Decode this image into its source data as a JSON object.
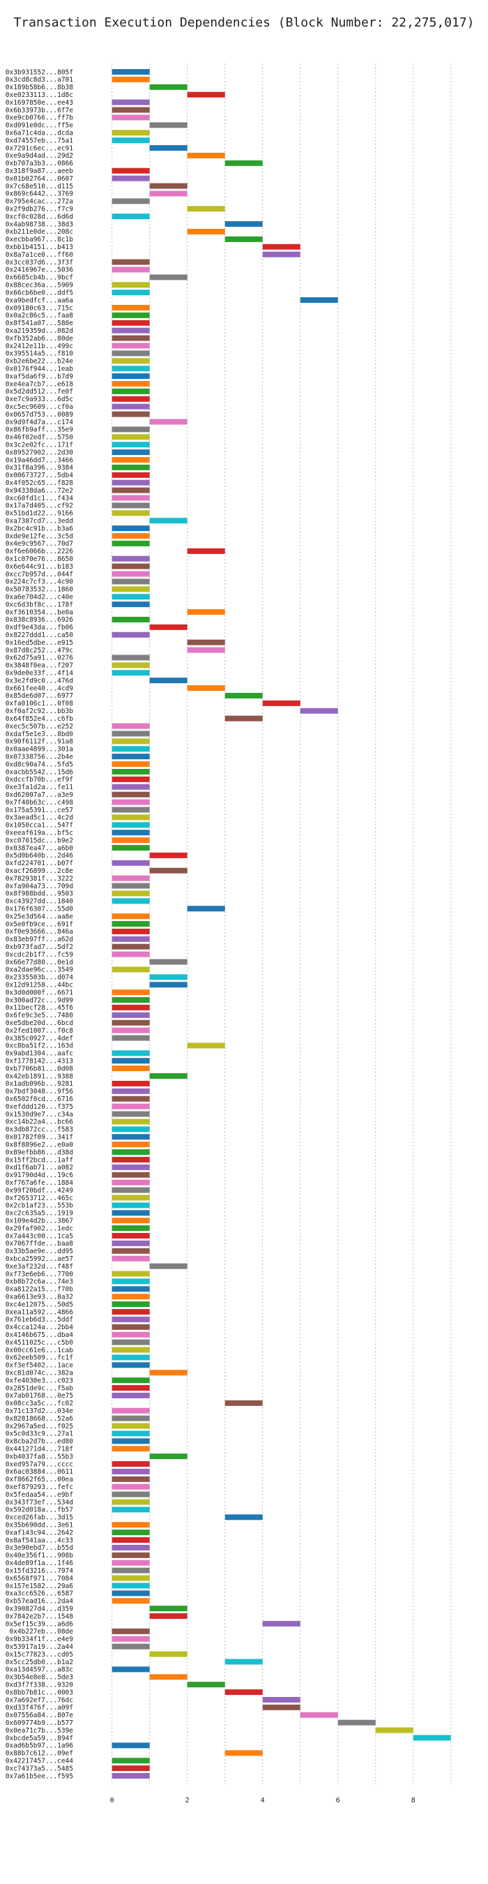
{
  "chart_data": {
    "type": "bar",
    "orientation": "horizontal",
    "title": "Transaction Execution Dependencies (Block Number: 22,275,017)",
    "xlabel": "",
    "ylabel": "",
    "xlim": [
      -0.9,
      9.8
    ],
    "xticks": [
      0,
      2,
      4,
      6,
      8
    ],
    "grid": "vertical-dashed",
    "legend": "none",
    "palette": [
      "#1f77b4",
      "#ff7f0e",
      "#2ca02c",
      "#d62728",
      "#9467bd",
      "#8c564b",
      "#e377c2",
      "#7f7f7f",
      "#bcbd22",
      "#17becf"
    ],
    "transactions": [
      {
        "label": "0x3b931552...805f",
        "start": 0
      },
      {
        "label": "0x3cd8c8d3...a701",
        "start": 0
      },
      {
        "label": "0x189b58b6...8b38",
        "start": 1
      },
      {
        "label": "0xe0233113...1d8c",
        "start": 2
      },
      {
        "label": "0x1697850e...ee43",
        "start": 0
      },
      {
        "label": "0x6b33973b...6f7e",
        "start": 0
      },
      {
        "label": "0xe9cb0766...ff7b",
        "start": 0
      },
      {
        "label": "0xd091e0dc...ff5e",
        "start": 1
      },
      {
        "label": "0x6a71c4da...dcda",
        "start": 0
      },
      {
        "label": "0xd74557eb...75a1",
        "start": 0
      },
      {
        "label": "0x7291c6ec...ec91",
        "start": 1
      },
      {
        "label": "0xe9a9d4ad...29d2",
        "start": 2
      },
      {
        "label": "0xb707a3b3...0866",
        "start": 3
      },
      {
        "label": "0x318f9a87...aeeb",
        "start": 0
      },
      {
        "label": "0x01b02764...0607",
        "start": 0
      },
      {
        "label": "0x7c68e510...d115",
        "start": 1
      },
      {
        "label": "0x869c6442...3769",
        "start": 1
      },
      {
        "label": "0x795e4cac...272a",
        "start": 0
      },
      {
        "label": "0x2f9db276...f7c9",
        "start": 2
      },
      {
        "label": "0xcf0c028d...6d6d",
        "start": 0
      },
      {
        "label": "0x4ab98738...38d3",
        "start": 3
      },
      {
        "label": "0xb211e0de...208c",
        "start": 2
      },
      {
        "label": "0xecbba967...8c1b",
        "start": 3
      },
      {
        "label": "0xbb1b4151...b413",
        "start": 4
      },
      {
        "label": "0x8a7a1ce0...ff60",
        "start": 4
      },
      {
        "label": "0x3cc037d6...3f3f",
        "start": 0
      },
      {
        "label": "0x2416967e...5036",
        "start": 0
      },
      {
        "label": "0x6685cb4b...9bcf",
        "start": 1
      },
      {
        "label": "0x88cec36a...5909",
        "start": 0
      },
      {
        "label": "0x66cb6be0...ddf5",
        "start": 0
      },
      {
        "label": "0xa9bedfcf...aa6a",
        "start": 5
      },
      {
        "label": "0x09180c63...715c",
        "start": 0
      },
      {
        "label": "0x0a2c86c5...faa8",
        "start": 0
      },
      {
        "label": "0x8f541a07...580e",
        "start": 0
      },
      {
        "label": "0xa219359d...082d",
        "start": 0
      },
      {
        "label": "0xfb352ab6...80de",
        "start": 0
      },
      {
        "label": "0x2412e11b...499c",
        "start": 0
      },
      {
        "label": "0x395514a5...f810",
        "start": 0
      },
      {
        "label": "0xb2e6be22...b24e",
        "start": 0
      },
      {
        "label": "0x0176f944...1eab",
        "start": 0
      },
      {
        "label": "0xaf5da6f9...b7d9",
        "start": 0
      },
      {
        "label": "0xe4ea7cb7...e618",
        "start": 0
      },
      {
        "label": "0x5d2dd512...fe0f",
        "start": 0
      },
      {
        "label": "0xe7c9a933...6d5c",
        "start": 0
      },
      {
        "label": "0xc5ec9609...cf0a",
        "start": 0
      },
      {
        "label": "0x0657d753...0089",
        "start": 0
      },
      {
        "label": "0x9d9f4d7a...c174",
        "start": 1
      },
      {
        "label": "0x86fb9aff...35e9",
        "start": 0
      },
      {
        "label": "0x46f02edf...5750",
        "start": 0
      },
      {
        "label": "0x3c2e02fc...171f",
        "start": 0
      },
      {
        "label": "0x89527902...2d30",
        "start": 0
      },
      {
        "label": "0x19a46dd7...3466",
        "start": 0
      },
      {
        "label": "0x31f8a396...9384",
        "start": 0
      },
      {
        "label": "0x00673727...5db4",
        "start": 0
      },
      {
        "label": "0x4f052c65...f828",
        "start": 0
      },
      {
        "label": "0x94338da6...72e2",
        "start": 0
      },
      {
        "label": "0xc60fd1c1...f434",
        "start": 0
      },
      {
        "label": "0x17a7d405...cf92",
        "start": 0
      },
      {
        "label": "0x51bd1d22...9166",
        "start": 0
      },
      {
        "label": "0xa7387cd7...3edd",
        "start": 1
      },
      {
        "label": "0x2bc4c91b...b3a6",
        "start": 0
      },
      {
        "label": "0xde9e12fe...3c5d",
        "start": 0
      },
      {
        "label": "0x4e9c9567...70d7",
        "start": 0
      },
      {
        "label": "0xf6e6066b...2226",
        "start": 2
      },
      {
        "label": "0x1c070e76...8650",
        "start": 0
      },
      {
        "label": "0x6e644c91...b183",
        "start": 0
      },
      {
        "label": "0xcc7b957d...044f",
        "start": 0
      },
      {
        "label": "0x224c7cf3...4c90",
        "start": 0
      },
      {
        "label": "0x50783532...1860",
        "start": 0
      },
      {
        "label": "0xa6e704d2...c40e",
        "start": 0
      },
      {
        "label": "0xc6d3bf8c...178f",
        "start": 0
      },
      {
        "label": "0xf3610354...be0a",
        "start": 2
      },
      {
        "label": "0x838c8936...6926",
        "start": 0
      },
      {
        "label": "0xdf9e43da...fb06",
        "start": 1
      },
      {
        "label": "0x8227ddd1...ca50",
        "start": 0
      },
      {
        "label": "0x16ed5dbe...e915",
        "start": 2
      },
      {
        "label": "0x87d8c252...479c",
        "start": 2
      },
      {
        "label": "0x62d75a91...0276",
        "start": 0
      },
      {
        "label": "0x3848f0ea...f207",
        "start": 0
      },
      {
        "label": "0x9de0e33f...4f14",
        "start": 0
      },
      {
        "label": "0x3e2fd9c0...476d",
        "start": 1
      },
      {
        "label": "0x661fee40...4cd9",
        "start": 2
      },
      {
        "label": "0x85de6d07...6977",
        "start": 3
      },
      {
        "label": "0xfa0106c1...0f08",
        "start": 4
      },
      {
        "label": "0xf0af2c92...bb3b",
        "start": 5
      },
      {
        "label": "0x64f852e4...c6fb",
        "start": 3
      },
      {
        "label": "0xec5c507b...e252",
        "start": 0
      },
      {
        "label": "0xdaf5e1e3...8bd0",
        "start": 0
      },
      {
        "label": "0x90f6112f...91a8",
        "start": 0
      },
      {
        "label": "0x0aae4899...301a",
        "start": 0
      },
      {
        "label": "0x07338756...2b4e",
        "start": 0
      },
      {
        "label": "0xd8c90a74...5fd5",
        "start": 0
      },
      {
        "label": "0xacbb5542...15d6",
        "start": 0
      },
      {
        "label": "0xdccfb70b...ef9f",
        "start": 0
      },
      {
        "label": "0xe3fa1d2a...fe11",
        "start": 0
      },
      {
        "label": "0xd62007a7...a3e9",
        "start": 0
      },
      {
        "label": "0x7f40b63c...c498",
        "start": 0
      },
      {
        "label": "0x175a5391...ce57",
        "start": 0
      },
      {
        "label": "0x3aead5c1...4c2d",
        "start": 0
      },
      {
        "label": "0x1050cca1...547f",
        "start": 0
      },
      {
        "label": "0xeeaf619a...bf5c",
        "start": 0
      },
      {
        "label": "0xc07015dc...b9e2",
        "start": 0
      },
      {
        "label": "0x0387ea47...a6b0",
        "start": 0
      },
      {
        "label": "0x5d0b640b...2d46",
        "start": 1
      },
      {
        "label": "0xfd224701...b07f",
        "start": 0
      },
      {
        "label": "0xacf26899...2c8e",
        "start": 1
      },
      {
        "label": "0x7829381f...3222",
        "start": 0
      },
      {
        "label": "0xfa904a73...709d",
        "start": 0
      },
      {
        "label": "0x8f988bdd...9503",
        "start": 0
      },
      {
        "label": "0xc43927dd...1840",
        "start": 0
      },
      {
        "label": "0x176f6307...55d0",
        "start": 2
      },
      {
        "label": "0x25e3d564...aa8e",
        "start": 0
      },
      {
        "label": "0x5e0fb9ce...691f",
        "start": 0
      },
      {
        "label": "0xf0e93666...846a",
        "start": 0
      },
      {
        "label": "0x83eb97ff...a62d",
        "start": 0
      },
      {
        "label": "0xb973fad7...5df2",
        "start": 0
      },
      {
        "label": "0xcdc2b1f7...fc59",
        "start": 0
      },
      {
        "label": "0x66e77d80...0e1d",
        "start": 1
      },
      {
        "label": "0xa2dae96c...3549",
        "start": 0
      },
      {
        "label": "0x2335503b...d074",
        "start": 1
      },
      {
        "label": "0x12d91258...44bc",
        "start": 1
      },
      {
        "label": "0x3d0d000f...6671",
        "start": 0
      },
      {
        "label": "0x300ad72c...9d99",
        "start": 0
      },
      {
        "label": "0x11becf28...45f6",
        "start": 0
      },
      {
        "label": "0x6fe9c3e5...7480",
        "start": 0
      },
      {
        "label": "0xe5dbe20d...6bcd",
        "start": 0
      },
      {
        "label": "0x2fed1007...f0c8",
        "start": 0
      },
      {
        "label": "0x385c0927...4def",
        "start": 0
      },
      {
        "label": "0xc8ba51f2...163d",
        "start": 2
      },
      {
        "label": "0x9abd1304...aafc",
        "start": 0
      },
      {
        "label": "0xf1778142...4313",
        "start": 0
      },
      {
        "label": "0xb7706b81...0d08",
        "start": 0
      },
      {
        "label": "0x42eb1891...9388",
        "start": 1
      },
      {
        "label": "0x1adb096b...9281",
        "start": 0
      },
      {
        "label": "0x7bdf3048...9f56",
        "start": 0
      },
      {
        "label": "0x6502f0cd...6716",
        "start": 0
      },
      {
        "label": "0xefddd120...f375",
        "start": 0
      },
      {
        "label": "0x1530d9e7...c34a",
        "start": 0
      },
      {
        "label": "0xc14b22a4...bc66",
        "start": 0
      },
      {
        "label": "0x3db872cc...f583",
        "start": 0
      },
      {
        "label": "0x01782f09...341f",
        "start": 0
      },
      {
        "label": "0x8f8896e2...e0a0",
        "start": 0
      },
      {
        "label": "0x89efbb86...d38d",
        "start": 0
      },
      {
        "label": "0x15ff2bcd...1aff",
        "start": 0
      },
      {
        "label": "0xd1f6ab71...a082",
        "start": 0
      },
      {
        "label": "0x91790d4d...19c6",
        "start": 0
      },
      {
        "label": "0xf767a6fe...1884",
        "start": 0
      },
      {
        "label": "0x99f20bdf...4249",
        "start": 0
      },
      {
        "label": "0xf2653712...465c",
        "start": 0
      },
      {
        "label": "0x2cb1af23...553b",
        "start": 0
      },
      {
        "label": "0xc2c635a5...1919",
        "start": 0
      },
      {
        "label": "0x109e4d2b...3867",
        "start": 0
      },
      {
        "label": "0x29faf902...1edc",
        "start": 0
      },
      {
        "label": "0x7a443c00...1ca5",
        "start": 0
      },
      {
        "label": "0x7067ffde...baa8",
        "start": 0
      },
      {
        "label": "0x33b5ae9e...dd95",
        "start": 0
      },
      {
        "label": "0xbca25992...ae57",
        "start": 0
      },
      {
        "label": "0xe3af232d...f48f",
        "start": 1
      },
      {
        "label": "0xf73e6eb6...7700",
        "start": 0
      },
      {
        "label": "0xb8b72c6a...74e3",
        "start": 0
      },
      {
        "label": "0xa8122a15...f70b",
        "start": 0
      },
      {
        "label": "0xa6613e93...8a32",
        "start": 0
      },
      {
        "label": "0xc4e12075...50d5",
        "start": 0
      },
      {
        "label": "0xea11a592...4866",
        "start": 0
      },
      {
        "label": "0x761eb6d3...5ddf",
        "start": 0
      },
      {
        "label": "0x4cca124a...2bb4",
        "start": 0
      },
      {
        "label": "0x4146b675...dba4",
        "start": 0
      },
      {
        "label": "0x4511025c...c5b0",
        "start": 0
      },
      {
        "label": "0x00cc61e6...1cab",
        "start": 0
      },
      {
        "label": "0x62eeb509...fc1f",
        "start": 0
      },
      {
        "label": "0xf3ef5402...1ace",
        "start": 0
      },
      {
        "label": "0xc81d074c...382a",
        "start": 1
      },
      {
        "label": "0xfe4030e3...c023",
        "start": 0
      },
      {
        "label": "0x2851de9c...f5ab",
        "start": 0
      },
      {
        "label": "0x7ab01768...0e75",
        "start": 0
      },
      {
        "label": "0x08cc3a5c...fc02",
        "start": 3
      },
      {
        "label": "0x71c137d2...034e",
        "start": 0
      },
      {
        "label": "0x82818668...52a6",
        "start": 0
      },
      {
        "label": "0x2967a5ed...f025",
        "start": 0
      },
      {
        "label": "0x5c0d33c9...27a1",
        "start": 0
      },
      {
        "label": "0x8cba2d7b...ed80",
        "start": 0
      },
      {
        "label": "0x441271d4...718f",
        "start": 0
      },
      {
        "label": "0xb4037fa8...55b3",
        "start": 1
      },
      {
        "label": "0xed957a79...cccc",
        "start": 0
      },
      {
        "label": "0x6ac03884...0611",
        "start": 0
      },
      {
        "label": "0xf8662f65...00ea",
        "start": 0
      },
      {
        "label": "0xef879293...fefc",
        "start": 0
      },
      {
        "label": "0x5fedaa54...e9bf",
        "start": 0
      },
      {
        "label": "0x343f73ef...534d",
        "start": 0
      },
      {
        "label": "0x592d018a...fb57",
        "start": 0
      },
      {
        "label": "0xced26fab...3d15",
        "start": 3
      },
      {
        "label": "0x35b690dd...3e61",
        "start": 0
      },
      {
        "label": "0xaf143c94...2642",
        "start": 0
      },
      {
        "label": "0x8af541aa...4c33",
        "start": 0
      },
      {
        "label": "0x3e90ebd7...b55d",
        "start": 0
      },
      {
        "label": "0x40e356f1...908b",
        "start": 0
      },
      {
        "label": "0x4de89f1a...1f46",
        "start": 0
      },
      {
        "label": "0x15fd3216...7974",
        "start": 0
      },
      {
        "label": "0x6568f971...7084",
        "start": 0
      },
      {
        "label": "0x157e1582...29a6",
        "start": 0
      },
      {
        "label": "0xa3cc6526...6587",
        "start": 0
      },
      {
        "label": "0xb57ead16...2da4",
        "start": 0
      },
      {
        "label": "0x390827d4...d359",
        "start": 1
      },
      {
        "label": "0x7842e2b7...1548",
        "start": 1
      },
      {
        "label": "0x5ef15c39...a6d6",
        "start": 4
      },
      {
        "label": "0x4b227eb...08de",
        "start": 0
      },
      {
        "label": "0x9b334f1f...e4e9",
        "start": 0
      },
      {
        "label": "0x53917a19...2a44",
        "start": 0
      },
      {
        "label": "0x15c77823...cd05",
        "start": 1
      },
      {
        "label": "0x5cc25db0...b1a2",
        "start": 3
      },
      {
        "label": "0xa13d4597...a83c",
        "start": 0
      },
      {
        "label": "0x3b54e8e8...5de3",
        "start": 1
      },
      {
        "label": "0xd3f7f338...9320",
        "start": 2
      },
      {
        "label": "0x8bb7b81c...0003",
        "start": 3
      },
      {
        "label": "0x7a692ef7...76dc",
        "start": 4
      },
      {
        "label": "0xd33f476f...a09f",
        "start": 4
      },
      {
        "label": "0x07556a84...807e",
        "start": 5
      },
      {
        "label": "0x609774b9...b577",
        "start": 6
      },
      {
        "label": "0x0ea71c7b...539e",
        "start": 7
      },
      {
        "label": "0xbcde5a59...894f",
        "start": 8
      },
      {
        "label": "0xad6b5b97...1a96",
        "start": 0
      },
      {
        "label": "0x88b7c612...09ef",
        "start": 3
      },
      {
        "label": "0x42217457...ce44",
        "start": 0
      },
      {
        "label": "0xc74373a5...5485",
        "start": 0
      },
      {
        "label": "0x7a61b5ee...f595",
        "start": 0
      }
    ]
  }
}
